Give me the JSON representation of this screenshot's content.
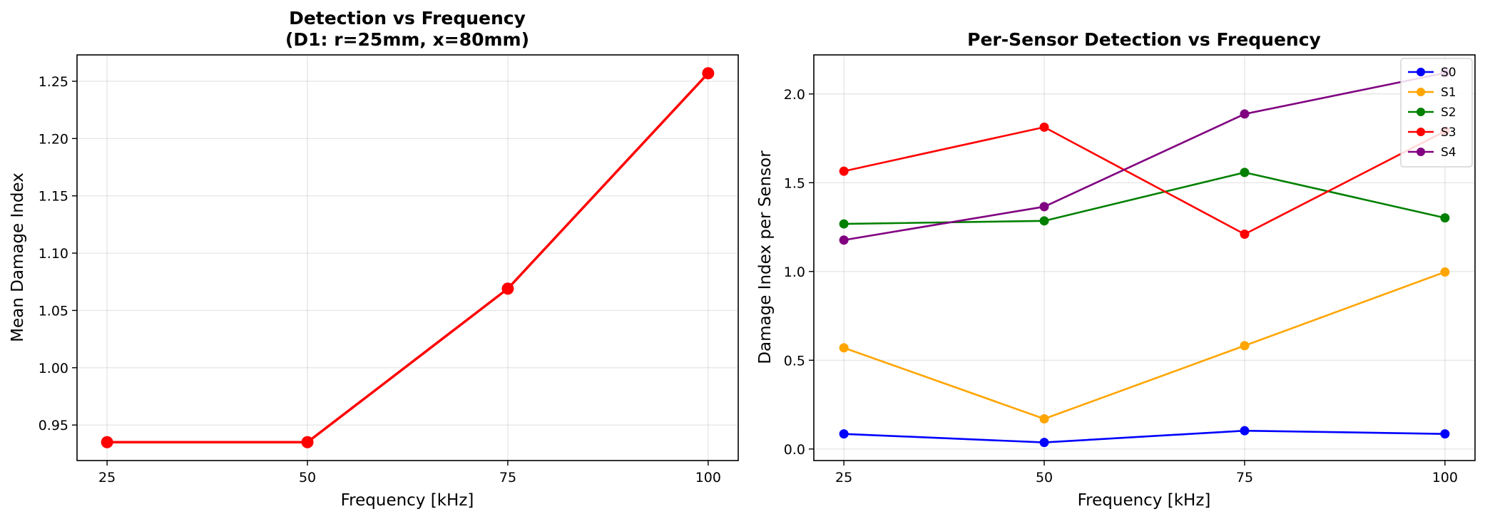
{
  "chart_data": [
    {
      "type": "line",
      "title": "Detection vs Frequency",
      "subtitle": "(D1: r=25mm, x=80mm)",
      "xlabel": "Frequency [kHz]",
      "ylabel": "Mean Damage Index",
      "x": [
        25,
        50,
        75,
        100
      ],
      "xticks": [
        "25",
        "50",
        "75",
        "100"
      ],
      "xlim": [
        21.25,
        103.75
      ],
      "ylim": [
        0.919,
        1.273
      ],
      "yticks": [
        "0.95",
        "1.00",
        "1.05",
        "1.10",
        "1.15",
        "1.20",
        "1.25"
      ],
      "ytick_values": [
        0.95,
        1.0,
        1.05,
        1.1,
        1.15,
        1.2,
        1.25
      ],
      "grid": true,
      "series": [
        {
          "values": [
            0.935,
            0.935,
            1.069,
            1.257
          ],
          "color": "#ff0000"
        }
      ]
    },
    {
      "type": "line",
      "title": "Per-Sensor Detection vs Frequency",
      "xlabel": "Frequency [kHz]",
      "ylabel": "Damage Index per Sensor",
      "x": [
        25,
        50,
        75,
        100
      ],
      "xticks": [
        "25",
        "50",
        "75",
        "100"
      ],
      "xlim": [
        21.25,
        103.75
      ],
      "ylim": [
        -0.065,
        2.22
      ],
      "yticks": [
        "0.0",
        "0.5",
        "1.0",
        "1.5",
        "2.0"
      ],
      "ytick_values": [
        0.0,
        0.5,
        1.0,
        1.5,
        2.0
      ],
      "grid": true,
      "legend": "top-right",
      "series": [
        {
          "name": "S0",
          "values": [
            0.085,
            0.037,
            0.103,
            0.085
          ],
          "color": "#0000ff"
        },
        {
          "name": "S1",
          "values": [
            0.57,
            0.17,
            0.582,
            0.997
          ],
          "color": "#ffa500"
        },
        {
          "name": "S2",
          "values": [
            1.268,
            1.285,
            1.558,
            1.302
          ],
          "color": "#008000"
        },
        {
          "name": "S3",
          "values": [
            1.565,
            1.813,
            1.21,
            1.79
          ],
          "color": "#ff0000"
        },
        {
          "name": "S4",
          "values": [
            1.177,
            1.365,
            1.887,
            2.118
          ],
          "color": "#800080"
        }
      ]
    }
  ]
}
